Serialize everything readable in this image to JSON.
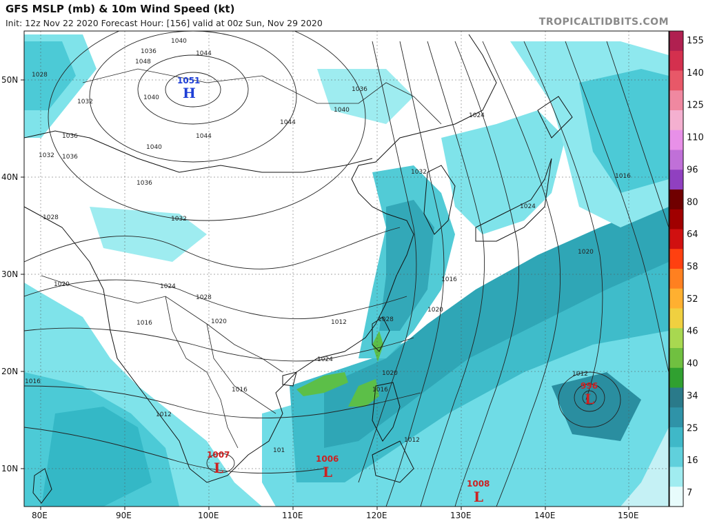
{
  "header": {
    "title": "GFS MSLP (mb) & 10m Wind Speed (kt)",
    "subtitle": "Init: 12z Nov 22 2020   Forecast Hour: [156]   valid at 00z Sun, Nov 29 2020",
    "brand": "TROPICALTIDBITS.COM"
  },
  "axes": {
    "lon_labels": [
      "80E",
      "90E",
      "100E",
      "110E",
      "120E",
      "130E",
      "140E",
      "150E"
    ],
    "lat_labels": [
      "50N",
      "40N",
      "30N",
      "20N",
      "10N"
    ]
  },
  "pressure_centers": [
    {
      "type": "H",
      "value": "1051",
      "color": "#1e3fd6"
    },
    {
      "type": "L",
      "value": "1007",
      "color": "#cc2222"
    },
    {
      "type": "L",
      "value": "1006",
      "color": "#cc2222"
    },
    {
      "type": "L",
      "value": "1008",
      "color": "#cc2222"
    },
    {
      "type": "L",
      "value": "996",
      "color": "#cc2222"
    }
  ],
  "isobar_labels": [
    "1040",
    "1044",
    "1048",
    "1036",
    "1028",
    "1032",
    "1040",
    "1044",
    "1036",
    "1040",
    "1044",
    "1036",
    "1024",
    "1032",
    "1036",
    "1028",
    "1032",
    "1036",
    "1040",
    "1024",
    "1020",
    "1016",
    "1032",
    "1028",
    "1020",
    "1016",
    "1024",
    "1020",
    "1028",
    "1016",
    "1012",
    "1016",
    "1012",
    "1012",
    "1016",
    "1020",
    "1024",
    "1016",
    "1020",
    "1012",
    "101"
  ],
  "colorbar": {
    "labels": [
      "155",
      "140",
      "125",
      "110",
      "96",
      "80",
      "64",
      "58",
      "52",
      "46",
      "40",
      "34",
      "25",
      "16",
      "7"
    ],
    "colors": [
      "#b02050",
      "#d4304e",
      "#e85868",
      "#f088a0",
      "#f4b0d0",
      "#e890e8",
      "#c070d8",
      "#9040c0",
      "#700000",
      "#a00000",
      "#d01010",
      "#ff4010",
      "#ff8020",
      "#ffb030",
      "#f0d040",
      "#a8d850",
      "#70c040",
      "#30a030",
      "#2a7a8a",
      "#2f93a8",
      "#3fb8c8",
      "#60d0dc",
      "#a0ecf0",
      "#e8fcfc"
    ]
  }
}
